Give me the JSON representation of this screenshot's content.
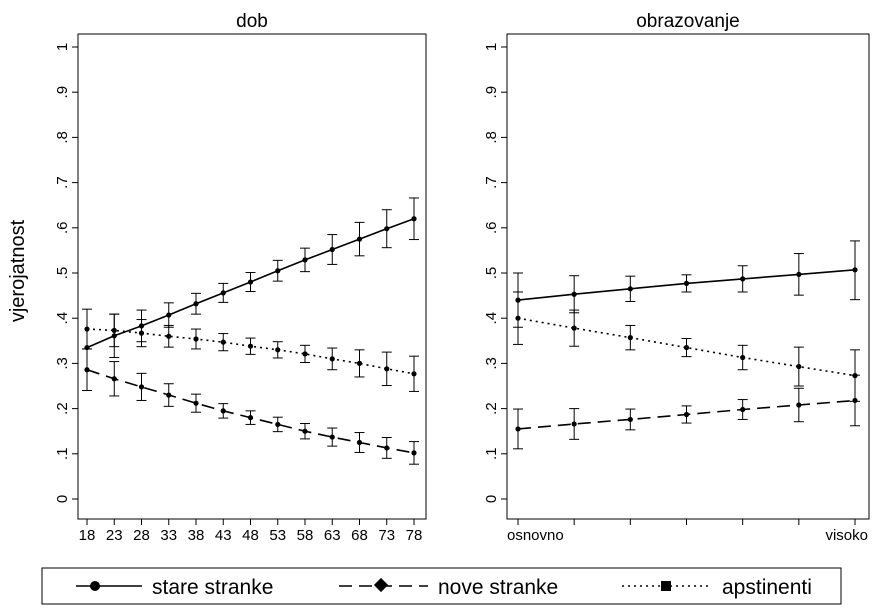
{
  "ylabel": "vjerojatnost",
  "chart_data": [
    {
      "type": "line",
      "title": "dob",
      "xlabel": "",
      "ylabel": "vjerojatnost",
      "ylim": [
        0,
        1
      ],
      "yticks": [
        "0",
        ".1",
        ".2",
        ".3",
        ".4",
        ".5",
        ".6",
        ".7",
        ".8",
        ".9",
        "1"
      ],
      "x": [
        18,
        23,
        28,
        33,
        38,
        43,
        48,
        53,
        58,
        63,
        68,
        73,
        78
      ],
      "xticks": [
        "18",
        "23",
        "28",
        "33",
        "38",
        "43",
        "48",
        "53",
        "58",
        "63",
        "68",
        "73",
        "78"
      ],
      "series": [
        {
          "name": "stare stranke",
          "values": [
            0.335,
            0.361,
            0.383,
            0.407,
            0.432,
            0.456,
            0.48,
            0.505,
            0.529,
            0.552,
            0.575,
            0.598,
            0.62
          ],
          "lower": [
            0.335,
            0.313,
            0.348,
            0.38,
            0.409,
            0.435,
            0.459,
            0.482,
            0.503,
            0.519,
            0.538,
            0.556,
            0.574
          ],
          "upper": [
            0.335,
            0.409,
            0.418,
            0.434,
            0.455,
            0.477,
            0.501,
            0.528,
            0.555,
            0.585,
            0.612,
            0.64,
            0.666
          ]
        },
        {
          "name": "nove stranke",
          "values": [
            0.286,
            0.266,
            0.248,
            0.23,
            0.212,
            0.195,
            0.18,
            0.165,
            0.15,
            0.137,
            0.125,
            0.113,
            0.102
          ],
          "lower": [
            0.24,
            0.228,
            0.218,
            0.205,
            0.192,
            0.179,
            0.165,
            0.149,
            0.133,
            0.117,
            0.103,
            0.09,
            0.077
          ],
          "upper": [
            0.332,
            0.304,
            0.278,
            0.255,
            0.232,
            0.211,
            0.195,
            0.181,
            0.167,
            0.157,
            0.147,
            0.136,
            0.127
          ]
        },
        {
          "name": "apstinenti",
          "values": [
            0.376,
            0.373,
            0.367,
            0.36,
            0.354,
            0.347,
            0.338,
            0.33,
            0.321,
            0.31,
            0.3,
            0.288,
            0.277
          ],
          "lower": [
            0.332,
            0.337,
            0.337,
            0.336,
            0.332,
            0.328,
            0.32,
            0.312,
            0.302,
            0.286,
            0.27,
            0.251,
            0.238
          ],
          "upper": [
            0.42,
            0.409,
            0.397,
            0.384,
            0.376,
            0.366,
            0.356,
            0.348,
            0.34,
            0.334,
            0.33,
            0.325,
            0.316
          ]
        }
      ]
    },
    {
      "type": "line",
      "title": "obrazovanje",
      "xlabel": "",
      "ylabel": "",
      "ylim": [
        0,
        1
      ],
      "yticks": [
        "0",
        ".1",
        ".2",
        ".3",
        ".4",
        ".5",
        ".6",
        ".7",
        ".8",
        ".9",
        "1"
      ],
      "x": [
        1,
        2,
        3,
        4,
        5,
        6,
        7
      ],
      "xticks": [
        "osnovno",
        "",
        "",
        "",
        "",
        "",
        "visoko"
      ],
      "series": [
        {
          "name": "stare stranke",
          "values": [
            0.44,
            0.453,
            0.465,
            0.477,
            0.487,
            0.497,
            0.507
          ],
          "lower": [
            0.38,
            0.412,
            0.437,
            0.458,
            0.458,
            0.451,
            0.441
          ],
          "upper": [
            0.5,
            0.494,
            0.493,
            0.496,
            0.516,
            0.543,
            0.571
          ]
        },
        {
          "name": "nove stranke",
          "values": [
            0.155,
            0.166,
            0.176,
            0.187,
            0.198,
            0.208,
            0.218
          ],
          "lower": [
            0.111,
            0.132,
            0.153,
            0.168,
            0.176,
            0.171,
            0.162
          ],
          "upper": [
            0.199,
            0.2,
            0.199,
            0.206,
            0.22,
            0.245,
            0.274
          ]
        },
        {
          "name": "apstinenti",
          "values": [
            0.4,
            0.378,
            0.357,
            0.335,
            0.313,
            0.293,
            0.273
          ],
          "lower": [
            0.342,
            0.338,
            0.33,
            0.315,
            0.286,
            0.25,
            0.216
          ],
          "upper": [
            0.458,
            0.418,
            0.384,
            0.355,
            0.34,
            0.336,
            0.33
          ]
        }
      ]
    }
  ],
  "legend": {
    "placement": "bottom",
    "items": [
      {
        "label": "stare stranke",
        "style": "solid",
        "marker": "circle"
      },
      {
        "label": "nove stranke",
        "style": "dashed",
        "marker": "diamond"
      },
      {
        "label": "apstinenti",
        "style": "dotted",
        "marker": "square"
      }
    ]
  }
}
